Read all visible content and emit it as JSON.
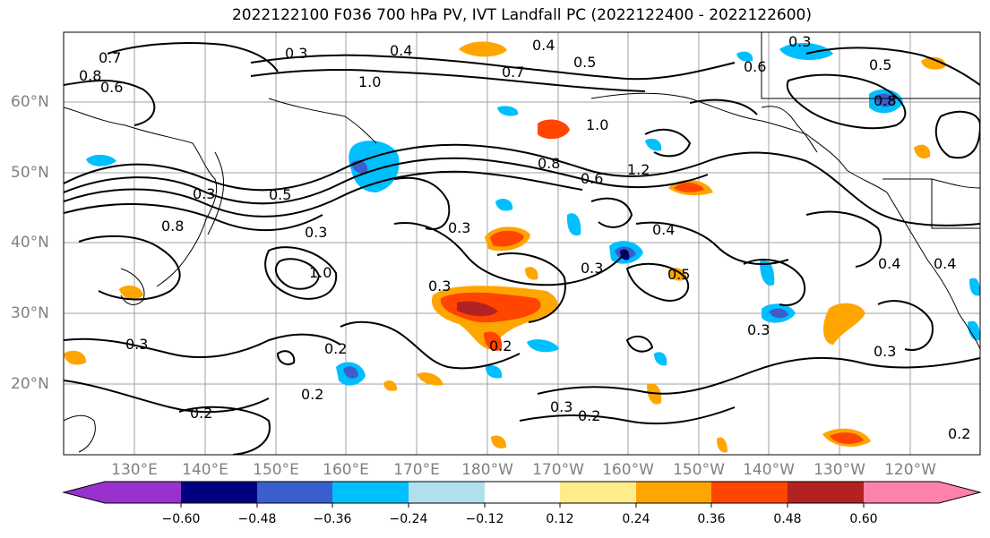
{
  "title": "2022122100 F036 700 hPa PV, IVT Landfall PC (2022122400 - 2022122600)",
  "map": {
    "lat_labels": [
      "60°N",
      "50°N",
      "40°N",
      "30°N",
      "20°N"
    ],
    "lon_labels": [
      "130°E",
      "140°E",
      "150°E",
      "160°E",
      "170°E",
      "180°W",
      "170°W",
      "160°W",
      "150°W",
      "140°W",
      "130°W",
      "120°W"
    ],
    "contour_labels": [
      "0.7",
      "0.8",
      "0.6",
      "0.3",
      "0.4",
      "0.4",
      "0.7",
      "1.0",
      "0.5",
      "0.6",
      "0.3",
      "0.5",
      "1.0",
      "0.8",
      "1.2",
      "0.6",
      "0.8",
      "0.3",
      "0.5",
      "0.8",
      "0.3",
      "0.3",
      "0.4",
      "0.5",
      "0.3",
      "1.0",
      "0.3",
      "0.2",
      "0.2",
      "0.2",
      "0.3",
      "0.3",
      "0.3",
      "0.2",
      "0.2",
      "0.3",
      "0.4",
      "0.4",
      "0.2"
    ]
  },
  "colorbar": {
    "colors": [
      "#9932cc",
      "#000080",
      "#3a5fcd",
      "#00bfff",
      "#b2dfee",
      "#ffffff",
      "#ffec8b",
      "#ffa500",
      "#ff4500",
      "#b22222",
      "#ff82ab"
    ],
    "ticks": [
      "−0.60",
      "−0.48",
      "−0.36",
      "−0.24",
      "−0.12",
      "0.12",
      "0.24",
      "0.36",
      "0.48",
      "0.60"
    ]
  }
}
